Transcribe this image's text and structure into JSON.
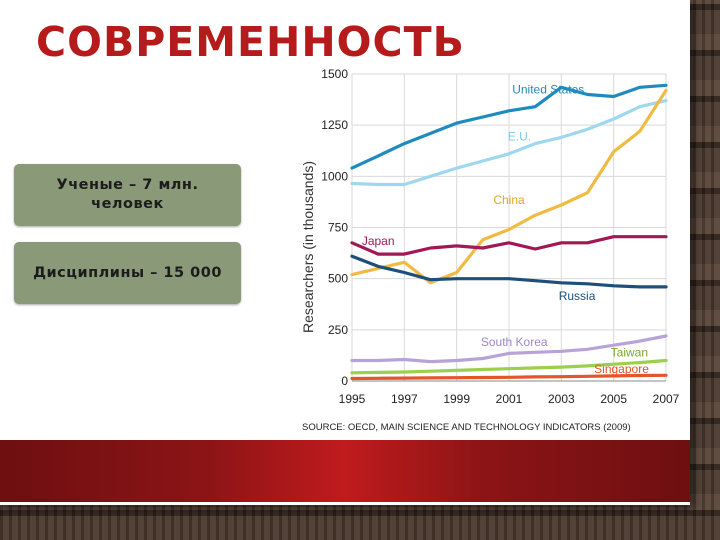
{
  "slide": {
    "title": "СОВРЕМЕННОСТЬ",
    "cards": [
      {
        "text": "Ученые – 7 млн. человек"
      },
      {
        "text": "Дисциплины – 15 000"
      }
    ]
  },
  "colors": {
    "title": "#b51b1b",
    "card": "#8a9a78",
    "banner": "#8c1416"
  },
  "chart_data": {
    "type": "line",
    "ylabel": "Researchers (in thousands)",
    "source": "SOURCE: OECD, MAIN SCIENCE AND TECHNOLOGY INDICATORS (2009)",
    "x_ticks": [
      "1995",
      "1997",
      "1999",
      "2001",
      "2003",
      "2005",
      "2007"
    ],
    "y_ticks": [
      "0",
      "250",
      "500",
      "750",
      "1000",
      "1250",
      "1500"
    ],
    "xlim": [
      1995,
      2007
    ],
    "ylim": [
      0,
      1500
    ],
    "grid": true,
    "series": [
      {
        "name": "United States",
        "color": "#1f8bbd",
        "x": [
          1995,
          1996,
          1997,
          1998,
          1999,
          2000,
          2001,
          2002,
          2003,
          2004,
          2005,
          2006,
          2007
        ],
        "y": [
          1040,
          1100,
          1160,
          1210,
          1260,
          1290,
          1320,
          1340,
          1435,
          1400,
          1390,
          1435,
          1445
        ]
      },
      {
        "name": "E.U.",
        "color": "#9fd7ef",
        "x": [
          1995,
          1996,
          1997,
          1998,
          1999,
          2000,
          2001,
          2002,
          2003,
          2004,
          2005,
          2006,
          2007
        ],
        "y": [
          965,
          960,
          960,
          1000,
          1040,
          1075,
          1110,
          1160,
          1190,
          1230,
          1280,
          1340,
          1370
        ]
      },
      {
        "name": "China",
        "color": "#f0bb43",
        "x": [
          1995,
          1996,
          1997,
          1998,
          1999,
          2000,
          2001,
          2002,
          2003,
          2004,
          2005,
          2006,
          2007
        ],
        "y": [
          520,
          550,
          580,
          480,
          530,
          690,
          740,
          810,
          860,
          920,
          1120,
          1220,
          1420
        ]
      },
      {
        "name": "Japan",
        "color": "#a01854",
        "x": [
          1995,
          1996,
          1997,
          1998,
          1999,
          2000,
          2001,
          2002,
          2003,
          2004,
          2005,
          2006,
          2007
        ],
        "y": [
          675,
          620,
          620,
          650,
          660,
          650,
          675,
          645,
          675,
          675,
          705,
          705,
          705
        ]
      },
      {
        "name": "Russia",
        "color": "#1d4f7a",
        "x": [
          1995,
          1996,
          1997,
          1998,
          1999,
          2000,
          2001,
          2002,
          2003,
          2004,
          2005,
          2006,
          2007
        ],
        "y": [
          610,
          560,
          530,
          495,
          500,
          500,
          500,
          490,
          480,
          475,
          465,
          460,
          460
        ]
      },
      {
        "name": "South Korea",
        "color": "#b8a3d9",
        "x": [
          1995,
          1996,
          1997,
          1998,
          1999,
          2000,
          2001,
          2002,
          2003,
          2004,
          2005,
          2006,
          2007
        ],
        "y": [
          100,
          100,
          105,
          95,
          100,
          110,
          135,
          140,
          145,
          155,
          175,
          195,
          220
        ]
      },
      {
        "name": "Taiwan",
        "color": "#9bcf4c",
        "x": [
          1995,
          1996,
          1997,
          1998,
          1999,
          2000,
          2001,
          2002,
          2003,
          2004,
          2005,
          2006,
          2007
        ],
        "y": [
          40,
          42,
          44,
          48,
          52,
          56,
          60,
          64,
          68,
          74,
          82,
          90,
          100
        ]
      },
      {
        "name": "Singapore",
        "color": "#e5552b",
        "x": [
          1995,
          1996,
          1997,
          1998,
          1999,
          2000,
          2001,
          2002,
          2003,
          2004,
          2005,
          2006,
          2007
        ],
        "y": [
          12,
          13,
          14,
          15,
          16,
          17,
          18,
          20,
          21,
          23,
          25,
          27,
          28
        ]
      }
    ],
    "annotations": [
      {
        "text": "United States",
        "series": "United States",
        "at": [
          2002.5,
          1405
        ],
        "color": "#1f8bbd"
      },
      {
        "text": "E.U.",
        "series": "E.U.",
        "at": [
          2001.4,
          1175
        ],
        "color": "#7fc6e8"
      },
      {
        "text": "China",
        "series": "China",
        "at": [
          2001.0,
          865
        ],
        "color": "#e0a62a"
      },
      {
        "text": "Japan",
        "series": "Japan",
        "at": [
          1996.0,
          665
        ],
        "color": "#a01854"
      },
      {
        "text": "Russia",
        "series": "Russia",
        "at": [
          2003.6,
          395
        ],
        "color": "#1d4f7a"
      },
      {
        "text": "South Korea",
        "series": "South Korea",
        "at": [
          2001.2,
          170
        ],
        "color": "#9f86c8"
      },
      {
        "text": "Taiwan",
        "series": "Taiwan",
        "at": [
          2005.6,
          120
        ],
        "color": "#7aa832"
      },
      {
        "text": "Singapore",
        "series": "Singapore",
        "at": [
          2005.3,
          40
        ],
        "color": "#e5552b"
      }
    ]
  }
}
